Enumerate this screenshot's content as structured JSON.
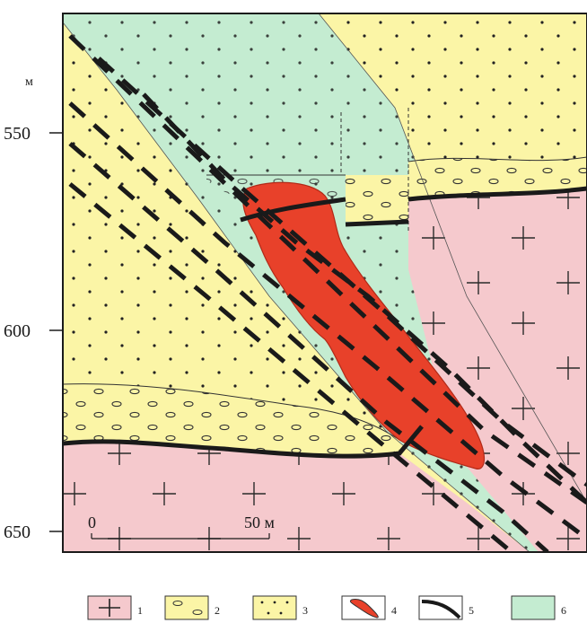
{
  "depth_axis": {
    "unit": "м",
    "ticks": [
      "550",
      "600",
      "650"
    ]
  },
  "scale_bar": {
    "start": "0",
    "end": "50 м"
  },
  "legend": [
    {
      "number": "1",
      "pattern": "cross-pink-icon"
    },
    {
      "number": "2",
      "pattern": "oval-yellow-icon"
    },
    {
      "number": "3",
      "pattern": "dots-yellow-icon"
    },
    {
      "number": "4",
      "pattern": "red-body-icon"
    },
    {
      "number": "5",
      "pattern": "thick-line-icon"
    },
    {
      "number": "6",
      "pattern": "green-fill-icon"
    }
  ],
  "colors": {
    "pink": "#f5c9cd",
    "yellow": "#fbf5a6",
    "green": "#c4ecd1",
    "red": "#e8412a",
    "line": "#1a1a1a"
  }
}
